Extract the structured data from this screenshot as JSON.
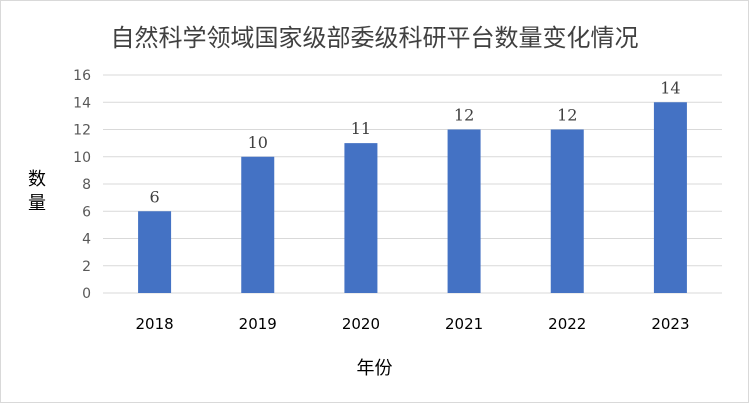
{
  "chart_data": {
    "type": "bar",
    "title": "自然科学领域国家级部委级科研平台数量变化情况",
    "xlabel": "年份",
    "ylabel": "数量",
    "categories": [
      "2018",
      "2019",
      "2020",
      "2021",
      "2022",
      "2023"
    ],
    "values": [
      6,
      10,
      11,
      12,
      12,
      14
    ],
    "ylim": [
      0,
      16
    ],
    "yticks": [
      "0",
      "2",
      "4",
      "6",
      "8",
      "10",
      "12",
      "14",
      "16"
    ],
    "data_labels": [
      "6",
      "10",
      "11",
      "12",
      "12",
      "14"
    ],
    "grid": true,
    "legend": "none",
    "bar_color": "#4472C4",
    "grid_color": "#d9d9d9"
  }
}
